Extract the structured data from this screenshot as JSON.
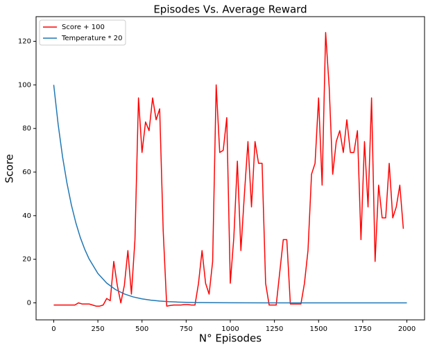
{
  "chart_data": {
    "type": "line",
    "title": "Episodes Vs. Average Reward",
    "x_label": "N° Episodes",
    "y_label": "Score",
    "xlim": [
      -100,
      2100
    ],
    "ylim": [
      -7.8,
      131.3
    ],
    "xticks": [
      0,
      250,
      500,
      750,
      1000,
      1250,
      1500,
      1750,
      2000
    ],
    "yticks": [
      0,
      20,
      40,
      60,
      80,
      100,
      120
    ],
    "grid": false,
    "legend": "upper-left",
    "series": [
      {
        "name": "Score + 100",
        "color": "#ff0000",
        "x": [
          0,
          20,
          40,
          60,
          80,
          100,
          120,
          140,
          160,
          180,
          200,
          220,
          240,
          260,
          280,
          300,
          320,
          340,
          360,
          380,
          400,
          420,
          440,
          460,
          480,
          500,
          520,
          540,
          560,
          580,
          600,
          620,
          640,
          660,
          680,
          700,
          720,
          740,
          760,
          780,
          800,
          820,
          840,
          860,
          880,
          900,
          920,
          940,
          960,
          980,
          1000,
          1020,
          1040,
          1060,
          1080,
          1100,
          1120,
          1140,
          1160,
          1180,
          1200,
          1220,
          1240,
          1260,
          1280,
          1300,
          1320,
          1340,
          1360,
          1380,
          1400,
          1420,
          1440,
          1460,
          1480,
          1500,
          1520,
          1540,
          1560,
          1580,
          1600,
          1620,
          1640,
          1660,
          1680,
          1700,
          1720,
          1740,
          1760,
          1780,
          1800,
          1820,
          1840,
          1860,
          1880,
          1900,
          1920,
          1940,
          1960,
          1980
        ],
        "values": [
          -1,
          -1,
          -1,
          -1,
          -1,
          -1,
          -1,
          0,
          -0.5,
          -0.5,
          -0.5,
          -1,
          -1.5,
          -1.5,
          -1,
          2,
          1,
          19,
          8,
          0,
          8,
          24,
          4,
          29,
          94,
          69,
          83,
          79,
          94,
          84,
          89,
          33,
          -1.5,
          -1.2,
          -1,
          -1,
          -1,
          -0.8,
          -0.8,
          -1,
          -1,
          9,
          24,
          9,
          4,
          19,
          100,
          69,
          70,
          85,
          9,
          30,
          65,
          24,
          50,
          74,
          44,
          74,
          64,
          64,
          9,
          -1,
          -1,
          -1,
          14,
          29,
          29,
          -0.5,
          -0.5,
          -0.5,
          -0.5,
          9,
          24,
          59,
          64,
          94,
          54,
          124,
          99,
          59,
          74,
          79,
          69,
          84,
          69,
          69,
          79,
          29,
          74,
          44,
          94,
          19,
          54,
          39,
          39,
          64,
          39,
          44,
          54,
          34
        ]
      },
      {
        "name": "Temperature * 20",
        "color": "#1f77b4",
        "x": [
          0,
          25,
          50,
          75,
          100,
          125,
          150,
          175,
          200,
          250,
          300,
          350,
          400,
          450,
          500,
          550,
          600,
          650,
          700,
          750,
          800,
          900,
          1000,
          1200,
          1500,
          2000
        ],
        "values": [
          100,
          81.9,
          67.0,
          54.9,
          44.9,
          36.8,
          30.1,
          24.7,
          20.2,
          13.5,
          9.07,
          6.08,
          4.08,
          2.73,
          1.83,
          1.23,
          0.82,
          0.55,
          0.37,
          0.25,
          0.17,
          0.07,
          0.03,
          0.01,
          0,
          0
        ]
      }
    ]
  }
}
